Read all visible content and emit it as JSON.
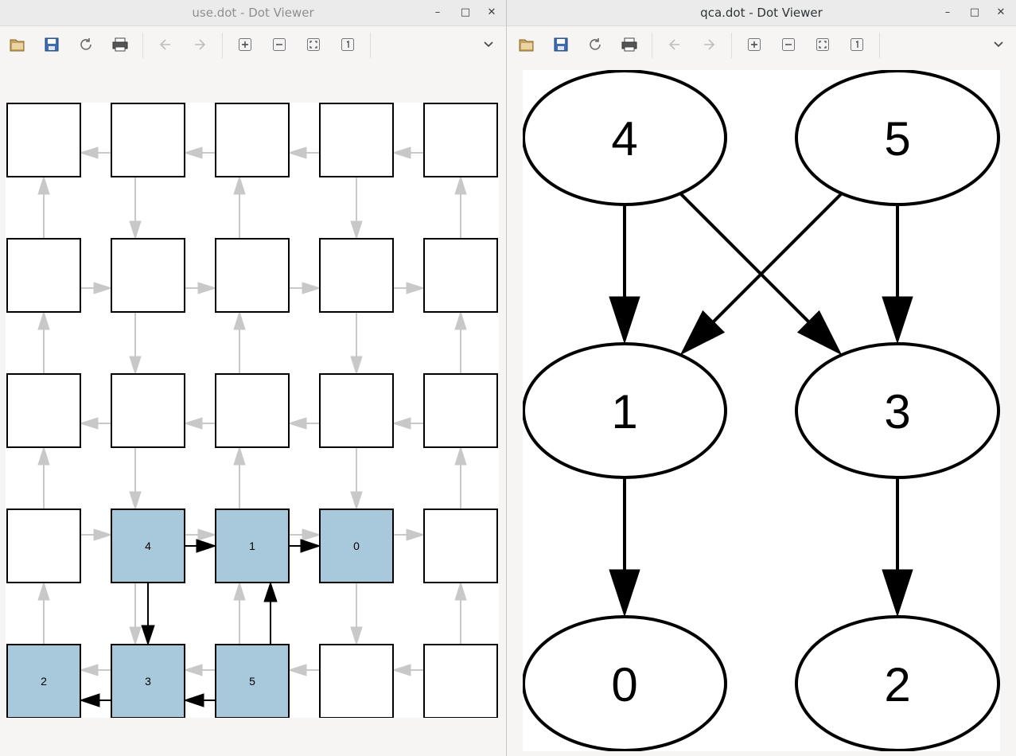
{
  "left_window": {
    "title": "use.dot - Dot Viewer",
    "graph": {
      "rows": [
        [
          "",
          "",
          "",
          "",
          ""
        ],
        [
          "",
          "",
          "",
          "",
          ""
        ],
        [
          "",
          "",
          "",
          "",
          ""
        ],
        [
          "",
          "4",
          "1",
          "0",
          ""
        ],
        [
          "2",
          "3",
          "5",
          "",
          ""
        ]
      ],
      "highlighted": [
        [
          3,
          1
        ],
        [
          3,
          2
        ],
        [
          3,
          3
        ],
        [
          4,
          0
        ],
        [
          4,
          1
        ],
        [
          4,
          2
        ]
      ]
    }
  },
  "right_window": {
    "title": "qca.dot - Dot Viewer",
    "graph": {
      "nodes": [
        "4",
        "5",
        "1",
        "3",
        "0",
        "2"
      ],
      "edges": [
        [
          "4",
          "1"
        ],
        [
          "4",
          "3"
        ],
        [
          "5",
          "1"
        ],
        [
          "5",
          "3"
        ],
        [
          "1",
          "0"
        ],
        [
          "3",
          "2"
        ]
      ]
    }
  },
  "colors": {
    "highlight_fill": "#a8c8dc",
    "grey_edge": "#c8c8c8"
  },
  "toolbar_icons": [
    "open-icon",
    "save-icon",
    "reload-icon",
    "print-icon",
    "back-icon",
    "forward-icon",
    "zoom-in-icon",
    "zoom-out-icon",
    "zoom-fit-icon",
    "zoom-100-icon"
  ]
}
